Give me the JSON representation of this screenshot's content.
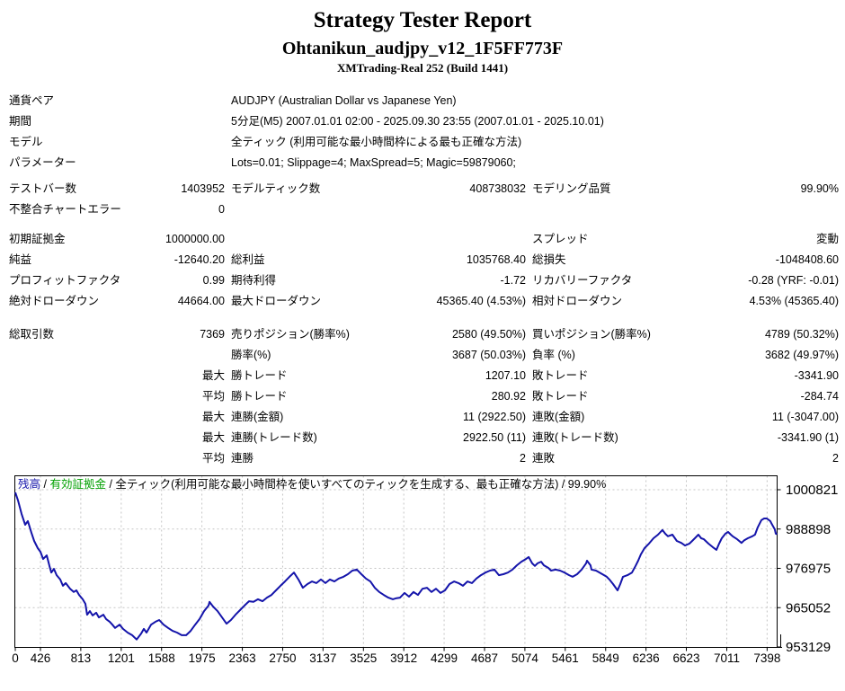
{
  "header": {
    "title": "Strategy Tester Report",
    "ea_name": "Ohtanikun_audjpy_v12_1F5FF773F",
    "server": "XMTrading-Real 252 (Build 1441)"
  },
  "table": {
    "sections": [
      {
        "rows": [
          {
            "type": "info",
            "cells": [
              "通貨ペア",
              "AUDJPY (Australian Dollar vs Japanese Yen)"
            ]
          },
          {
            "type": "info",
            "cells": [
              "期間",
              "5分足(M5) 2007.01.01 02:00 - 2025.09.30 23:55 (2007.01.01 - 2025.10.01)"
            ]
          },
          {
            "type": "info",
            "cells": [
              "モデル",
              "全ティック (利用可能な最小時間枠による最も正確な方法)"
            ]
          },
          {
            "type": "info",
            "cells": [
              "パラメーター",
              "Lots=0.01; Slippage=4; MaxSpread=5; Magic=59879060;"
            ]
          }
        ]
      },
      {
        "rows": [
          {
            "type": "stats",
            "cells": [
              "テストバー数",
              "1403952",
              "モデルティック数",
              "408738032",
              "モデリング品質",
              "99.90%"
            ]
          },
          {
            "type": "stats",
            "cells": [
              "不整合チャートエラー",
              "0",
              "",
              "",
              "",
              ""
            ]
          }
        ]
      },
      {
        "rows": [
          {
            "type": "stats",
            "cells": [
              "初期証拠金",
              "1000000.00",
              "",
              "",
              "スプレッド",
              "変動"
            ]
          },
          {
            "type": "stats",
            "cells": [
              "純益",
              "-12640.20",
              "総利益",
              "1035768.40",
              "総損失",
              "-1048408.60"
            ]
          },
          {
            "type": "stats",
            "cells": [
              "プロフィットファクタ",
              "0.99",
              "期待利得",
              "-1.72",
              "リカバリーファクタ",
              "-0.28 (YRF: -0.01)"
            ]
          },
          {
            "type": "stats",
            "cells": [
              "絶対ドローダウン",
              "44664.00",
              "最大ドローダウン",
              "45365.40 (4.53%)",
              "相対ドローダウン",
              "4.53% (45365.40)"
            ]
          }
        ]
      },
      {
        "rows": [
          {
            "type": "stats",
            "cells": [
              "総取引数",
              "7369",
              "売りポジション(勝率%)",
              "2580 (49.50%)",
              "買いポジション(勝率%)",
              "4789 (50.32%)"
            ]
          },
          {
            "type": "stats",
            "cells": [
              "",
              "",
              "勝率(%)",
              "3687 (50.03%)",
              "負率 (%)",
              "3682 (49.97%)"
            ]
          },
          {
            "type": "stats",
            "cells": [
              "",
              "最大",
              "勝トレード",
              "1207.10",
              "敗トレード",
              "-3341.90"
            ]
          },
          {
            "type": "stats",
            "cells": [
              "",
              "平均",
              "勝トレード",
              "280.92",
              "敗トレード",
              "-284.74"
            ]
          },
          {
            "type": "stats",
            "cells": [
              "",
              "最大",
              "連勝(金額)",
              "11 (2922.50)",
              "連敗(金額)",
              "11 (-3047.00)"
            ]
          },
          {
            "type": "stats",
            "cells": [
              "",
              "最大",
              "連勝(トレード数)",
              "2922.50 (11)",
              "連敗(トレード数)",
              "-3341.90 (1)"
            ]
          },
          {
            "type": "stats",
            "cells": [
              "",
              "平均",
              "連勝",
              "2",
              "連敗",
              "2"
            ]
          }
        ]
      }
    ]
  },
  "chart_data": {
    "type": "line",
    "legend": {
      "balance_label": "残高",
      "separator": "/",
      "equity_label": "有効証拠金",
      "model_label": "全ティック(利用可能な最小時間枠を使いすべてのティックを生成する、最も正確な方法)",
      "quality": "99.90%"
    },
    "colors": {
      "balance_line": "#1414aa",
      "equity_green": "#00a000",
      "grid": "#c4c4c4",
      "frame": "#000000"
    },
    "x_ticks": [
      0,
      426,
      813,
      1201,
      1588,
      1975,
      2363,
      2750,
      3137,
      3525,
      3912,
      4299,
      4687,
      5074,
      5461,
      5849,
      6236,
      6623,
      7011,
      7398
    ],
    "y_ticks": [
      1000821,
      988898,
      976975,
      965052,
      953129
    ],
    "x_range": [
      0,
      7516
    ],
    "y_range": [
      953129,
      1000821
    ],
    "series": [
      {
        "name": "残高",
        "points": [
          [
            0,
            1000000
          ],
          [
            46,
            997600
          ],
          [
            106,
            993500
          ],
          [
            167,
            990200
          ],
          [
            213,
            991300
          ],
          [
            274,
            987700
          ],
          [
            319,
            985300
          ],
          [
            380,
            983100
          ],
          [
            426,
            982000
          ],
          [
            452,
            979800
          ],
          [
            486,
            980900
          ],
          [
            512,
            977700
          ],
          [
            530,
            975700
          ],
          [
            555,
            976800
          ],
          [
            581,
            974900
          ],
          [
            616,
            973600
          ],
          [
            642,
            971700
          ],
          [
            668,
            972500
          ],
          [
            711,
            970800
          ],
          [
            745,
            969800
          ],
          [
            771,
            970300
          ],
          [
            797,
            968900
          ],
          [
            831,
            967600
          ],
          [
            857,
            966200
          ],
          [
            874,
            962900
          ],
          [
            900,
            964000
          ],
          [
            926,
            962700
          ],
          [
            961,
            963500
          ],
          [
            987,
            962100
          ],
          [
            1030,
            962900
          ],
          [
            1056,
            961600
          ],
          [
            1090,
            960800
          ],
          [
            1116,
            959900
          ],
          [
            1142,
            958900
          ],
          [
            1185,
            959900
          ],
          [
            1219,
            958600
          ],
          [
            1263,
            957500
          ],
          [
            1306,
            956700
          ],
          [
            1349,
            955400
          ],
          [
            1392,
            957200
          ],
          [
            1418,
            958600
          ],
          [
            1444,
            957500
          ],
          [
            1487,
            959900
          ],
          [
            1530,
            960800
          ],
          [
            1565,
            961300
          ],
          [
            1608,
            959900
          ],
          [
            1651,
            958900
          ],
          [
            1694,
            958000
          ],
          [
            1737,
            957500
          ],
          [
            1781,
            956700
          ],
          [
            1824,
            956700
          ],
          [
            1867,
            958000
          ],
          [
            1910,
            959900
          ],
          [
            1953,
            961600
          ],
          [
            1996,
            964000
          ],
          [
            2039,
            965700
          ],
          [
            2048,
            966800
          ],
          [
            2082,
            965400
          ],
          [
            2125,
            964000
          ],
          [
            2168,
            962100
          ],
          [
            2211,
            960200
          ],
          [
            2254,
            961300
          ],
          [
            2298,
            962900
          ],
          [
            2341,
            964300
          ],
          [
            2384,
            965700
          ],
          [
            2427,
            967000
          ],
          [
            2470,
            966800
          ],
          [
            2513,
            967600
          ],
          [
            2556,
            967000
          ],
          [
            2599,
            968100
          ],
          [
            2643,
            968900
          ],
          [
            2686,
            970300
          ],
          [
            2729,
            971700
          ],
          [
            2772,
            973000
          ],
          [
            2815,
            974400
          ],
          [
            2858,
            975700
          ],
          [
            2901,
            973600
          ],
          [
            2944,
            971100
          ],
          [
            2988,
            972200
          ],
          [
            3031,
            973000
          ],
          [
            3074,
            972500
          ],
          [
            3117,
            973600
          ],
          [
            3160,
            972500
          ],
          [
            3203,
            973600
          ],
          [
            3246,
            973000
          ],
          [
            3289,
            973900
          ],
          [
            3333,
            974400
          ],
          [
            3376,
            975200
          ],
          [
            3419,
            976300
          ],
          [
            3462,
            976600
          ],
          [
            3505,
            975200
          ],
          [
            3548,
            973900
          ],
          [
            3591,
            973000
          ],
          [
            3634,
            971100
          ],
          [
            3677,
            969800
          ],
          [
            3720,
            968900
          ],
          [
            3764,
            968100
          ],
          [
            3807,
            967600
          ],
          [
            3876,
            968100
          ],
          [
            3919,
            969500
          ],
          [
            3962,
            968400
          ],
          [
            4005,
            969800
          ],
          [
            4048,
            968900
          ],
          [
            4092,
            970800
          ],
          [
            4135,
            971100
          ],
          [
            4178,
            969800
          ],
          [
            4221,
            970800
          ],
          [
            4264,
            969500
          ],
          [
            4307,
            970300
          ],
          [
            4350,
            972200
          ],
          [
            4394,
            973000
          ],
          [
            4437,
            972500
          ],
          [
            4480,
            971700
          ],
          [
            4523,
            973000
          ],
          [
            4566,
            972500
          ],
          [
            4609,
            973900
          ],
          [
            4652,
            974900
          ],
          [
            4695,
            975700
          ],
          [
            4739,
            976300
          ],
          [
            4782,
            976600
          ],
          [
            4825,
            974900
          ],
          [
            4868,
            975200
          ],
          [
            4911,
            975700
          ],
          [
            4954,
            976600
          ],
          [
            4997,
            977900
          ],
          [
            5040,
            979000
          ],
          [
            5084,
            979800
          ],
          [
            5110,
            980400
          ],
          [
            5144,
            978500
          ],
          [
            5170,
            977700
          ],
          [
            5196,
            978500
          ],
          [
            5230,
            979000
          ],
          [
            5256,
            977900
          ],
          [
            5299,
            977100
          ],
          [
            5325,
            976300
          ],
          [
            5368,
            976600
          ],
          [
            5411,
            976300
          ],
          [
            5454,
            975700
          ],
          [
            5498,
            974900
          ],
          [
            5532,
            974400
          ],
          [
            5575,
            975200
          ],
          [
            5618,
            976600
          ],
          [
            5661,
            978500
          ],
          [
            5670,
            979300
          ],
          [
            5704,
            977900
          ],
          [
            5713,
            976600
          ],
          [
            5756,
            976300
          ],
          [
            5791,
            975700
          ],
          [
            5834,
            974900
          ],
          [
            5860,
            974400
          ],
          [
            5885,
            973600
          ],
          [
            5920,
            972200
          ],
          [
            5963,
            970300
          ],
          [
            5989,
            972200
          ],
          [
            6015,
            974400
          ],
          [
            6058,
            974900
          ],
          [
            6101,
            975700
          ],
          [
            6136,
            977700
          ],
          [
            6161,
            979300
          ],
          [
            6187,
            981200
          ],
          [
            6222,
            983100
          ],
          [
            6265,
            984500
          ],
          [
            6308,
            986100
          ],
          [
            6351,
            987200
          ],
          [
            6394,
            988600
          ],
          [
            6420,
            987500
          ],
          [
            6446,
            986700
          ],
          [
            6489,
            987200
          ],
          [
            6532,
            985300
          ],
          [
            6575,
            984700
          ],
          [
            6610,
            983900
          ],
          [
            6653,
            984500
          ],
          [
            6679,
            985300
          ],
          [
            6705,
            986100
          ],
          [
            6739,
            987200
          ],
          [
            6765,
            986100
          ],
          [
            6791,
            985800
          ],
          [
            6834,
            984500
          ],
          [
            6877,
            983400
          ],
          [
            6912,
            982600
          ],
          [
            6938,
            984500
          ],
          [
            6963,
            986100
          ],
          [
            6998,
            987500
          ],
          [
            7024,
            988000
          ],
          [
            7050,
            987200
          ],
          [
            7067,
            986700
          ],
          [
            7110,
            985800
          ],
          [
            7153,
            984700
          ],
          [
            7179,
            985500
          ],
          [
            7213,
            986100
          ],
          [
            7256,
            986700
          ],
          [
            7282,
            987200
          ],
          [
            7308,
            989400
          ],
          [
            7343,
            991600
          ],
          [
            7369,
            992100
          ],
          [
            7395,
            992100
          ],
          [
            7429,
            991300
          ],
          [
            7438,
            990700
          ],
          [
            7472,
            988800
          ],
          [
            7481,
            987500
          ],
          [
            7516,
            987360
          ]
        ]
      }
    ]
  }
}
